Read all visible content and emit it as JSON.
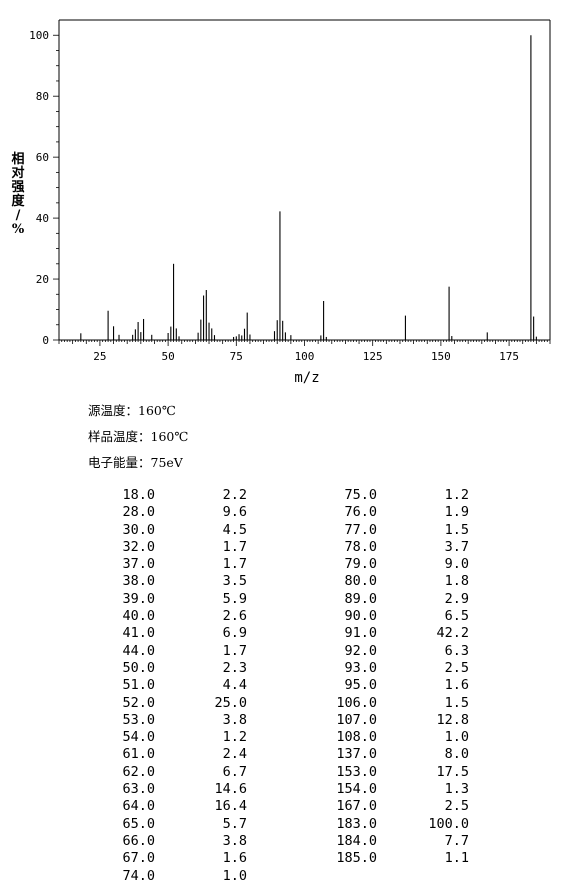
{
  "chart_data": {
    "type": "bar",
    "title": "",
    "xlabel": "m/z",
    "ylabel": "相对强度/%",
    "xlim": [
      10,
      190
    ],
    "ylim": [
      0,
      105
    ],
    "x_ticks": [
      25,
      50,
      75,
      100,
      125,
      150,
      175
    ],
    "y_ticks": [
      0,
      20,
      40,
      60,
      80,
      100
    ],
    "grid": false,
    "peaks": [
      {
        "mz": 18.0,
        "abundance": 2.2
      },
      {
        "mz": 28.0,
        "abundance": 9.6
      },
      {
        "mz": 30.0,
        "abundance": 4.5
      },
      {
        "mz": 32.0,
        "abundance": 1.7
      },
      {
        "mz": 37.0,
        "abundance": 1.7
      },
      {
        "mz": 38.0,
        "abundance": 3.5
      },
      {
        "mz": 39.0,
        "abundance": 5.9
      },
      {
        "mz": 40.0,
        "abundance": 2.6
      },
      {
        "mz": 41.0,
        "abundance": 6.9
      },
      {
        "mz": 44.0,
        "abundance": 1.7
      },
      {
        "mz": 50.0,
        "abundance": 2.3
      },
      {
        "mz": 51.0,
        "abundance": 4.4
      },
      {
        "mz": 52.0,
        "abundance": 25.0
      },
      {
        "mz": 53.0,
        "abundance": 3.8
      },
      {
        "mz": 54.0,
        "abundance": 1.2
      },
      {
        "mz": 61.0,
        "abundance": 2.4
      },
      {
        "mz": 62.0,
        "abundance": 6.7
      },
      {
        "mz": 63.0,
        "abundance": 14.6
      },
      {
        "mz": 64.0,
        "abundance": 16.4
      },
      {
        "mz": 65.0,
        "abundance": 5.7
      },
      {
        "mz": 66.0,
        "abundance": 3.8
      },
      {
        "mz": 67.0,
        "abundance": 1.6
      },
      {
        "mz": 74.0,
        "abundance": 1.0
      },
      {
        "mz": 75.0,
        "abundance": 1.2
      },
      {
        "mz": 76.0,
        "abundance": 1.9
      },
      {
        "mz": 77.0,
        "abundance": 1.5
      },
      {
        "mz": 78.0,
        "abundance": 3.7
      },
      {
        "mz": 79.0,
        "abundance": 9.0
      },
      {
        "mz": 80.0,
        "abundance": 1.8
      },
      {
        "mz": 89.0,
        "abundance": 2.9
      },
      {
        "mz": 90.0,
        "abundance": 6.5
      },
      {
        "mz": 91.0,
        "abundance": 42.2
      },
      {
        "mz": 92.0,
        "abundance": 6.3
      },
      {
        "mz": 93.0,
        "abundance": 2.5
      },
      {
        "mz": 95.0,
        "abundance": 1.6
      },
      {
        "mz": 106.0,
        "abundance": 1.5
      },
      {
        "mz": 107.0,
        "abundance": 12.8
      },
      {
        "mz": 108.0,
        "abundance": 1.0
      },
      {
        "mz": 137.0,
        "abundance": 8.0
      },
      {
        "mz": 153.0,
        "abundance": 17.5
      },
      {
        "mz": 154.0,
        "abundance": 1.3
      },
      {
        "mz": 167.0,
        "abundance": 2.5
      },
      {
        "mz": 183.0,
        "abundance": 100.0
      },
      {
        "mz": 184.0,
        "abundance": 7.7
      },
      {
        "mz": 185.0,
        "abundance": 1.1
      }
    ]
  },
  "conditions": {
    "source_temp": "源温度：160℃",
    "sample_temp": "样品温度：160℃",
    "electron_energy": "电子能量：75eV"
  },
  "peak_table": {
    "columns": [
      [
        [
          "18.0",
          "2.2"
        ],
        [
          "28.0",
          "9.6"
        ],
        [
          "30.0",
          "4.5"
        ],
        [
          "32.0",
          "1.7"
        ],
        [
          "37.0",
          "1.7"
        ],
        [
          "38.0",
          "3.5"
        ],
        [
          "39.0",
          "5.9"
        ],
        [
          "40.0",
          "2.6"
        ],
        [
          "41.0",
          "6.9"
        ],
        [
          "44.0",
          "1.7"
        ],
        [
          "50.0",
          "2.3"
        ],
        [
          "51.0",
          "4.4"
        ],
        [
          "52.0",
          "25.0"
        ],
        [
          "53.0",
          "3.8"
        ],
        [
          "54.0",
          "1.2"
        ],
        [
          "61.0",
          "2.4"
        ],
        [
          "62.0",
          "6.7"
        ],
        [
          "63.0",
          "14.6"
        ],
        [
          "64.0",
          "16.4"
        ],
        [
          "65.0",
          "5.7"
        ],
        [
          "66.0",
          "3.8"
        ],
        [
          "67.0",
          "1.6"
        ],
        [
          "74.0",
          "1.0"
        ]
      ],
      [
        [
          "75.0",
          "1.2"
        ],
        [
          "76.0",
          "1.9"
        ],
        [
          "77.0",
          "1.5"
        ],
        [
          "78.0",
          "3.7"
        ],
        [
          "79.0",
          "9.0"
        ],
        [
          "80.0",
          "1.8"
        ],
        [
          "89.0",
          "2.9"
        ],
        [
          "90.0",
          "6.5"
        ],
        [
          "91.0",
          "42.2"
        ],
        [
          "92.0",
          "6.3"
        ],
        [
          "93.0",
          "2.5"
        ],
        [
          "95.0",
          "1.6"
        ],
        [
          "106.0",
          "1.5"
        ],
        [
          "107.0",
          "12.8"
        ],
        [
          "108.0",
          "1.0"
        ],
        [
          "137.0",
          "8.0"
        ],
        [
          "153.0",
          "17.5"
        ],
        [
          "154.0",
          "1.3"
        ],
        [
          "167.0",
          "2.5"
        ],
        [
          "183.0",
          "100.0"
        ],
        [
          "184.0",
          "7.7"
        ],
        [
          "185.0",
          "1.1"
        ]
      ]
    ]
  }
}
